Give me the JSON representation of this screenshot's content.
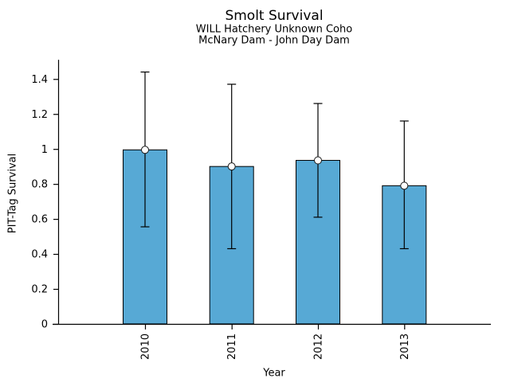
{
  "chart_data": {
    "type": "bar",
    "title": "Smolt Survival",
    "subtitle": [
      "WILL Hatchery Unknown Coho",
      "McNary Dam - John Day Dam"
    ],
    "xlabel": "Year",
    "ylabel": "PIT-Tag Survival",
    "categories": [
      "2010",
      "2011",
      "2012",
      "2013"
    ],
    "values": [
      0.995,
      0.9,
      0.935,
      0.79
    ],
    "error_low": [
      0.555,
      0.43,
      0.61,
      0.43
    ],
    "error_high": [
      1.44,
      1.37,
      1.26,
      1.16
    ],
    "yticks": [
      0,
      0.2,
      0.4,
      0.6,
      0.8,
      1,
      1.2,
      1.4
    ],
    "ytick_labels": [
      "0",
      "0.2",
      "0.4",
      "0.6",
      "0.8",
      "1",
      "1.2",
      "1.4"
    ],
    "ylim": [
      0,
      1.51
    ],
    "grid": false,
    "legend": null,
    "marker": "open-circle",
    "bar_fill": "#57A9D5",
    "bar_edge": "#000000",
    "error_color": "#000000",
    "marker_fill": "#ffffff",
    "marker_edge": "#1a1a1a",
    "text_color": "#000000",
    "background": "#FFFFFF"
  }
}
